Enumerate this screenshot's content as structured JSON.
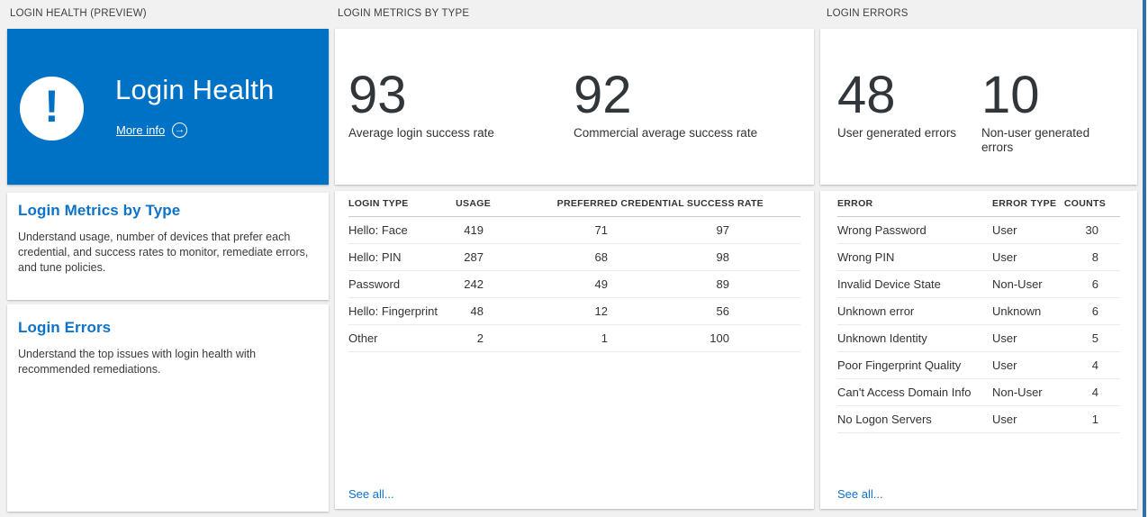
{
  "colors": {
    "tile_blue": "#0072c6",
    "link_blue": "#0d73ca",
    "text_dark": "#333333",
    "background": "#f1f1f1",
    "edge_blue": "#2a72ad"
  },
  "icons": {
    "alert_glyph": "!",
    "arrow_glyph": "→"
  },
  "login_health": {
    "header": "LOGIN HEALTH (PREVIEW)",
    "tile": {
      "title": "Login Health",
      "more_info_label": "More info"
    },
    "sections": [
      {
        "title": "Login Metrics by Type",
        "description": "Understand usage, number of devices that prefer each\ncredential, and success rates to monitor, remediate errors,\nand tune policies."
      },
      {
        "title": "Login Errors",
        "description": "Understand the top issues with login health with\nrecommended remediations."
      }
    ]
  },
  "login_metrics": {
    "header": "LOGIN METRICS BY TYPE",
    "stats": [
      {
        "value": "93",
        "label": "Average login success rate"
      },
      {
        "value": "92",
        "label": "Commercial average success rate"
      }
    ],
    "table": {
      "columns": [
        "LOGIN TYPE",
        "USAGE",
        "PREFERRED CREDENTIAL",
        "SUCCESS RATE"
      ],
      "rows": [
        [
          "Hello: Face",
          "419",
          "71",
          "97"
        ],
        [
          "Hello: PIN",
          "287",
          "68",
          "98"
        ],
        [
          "Password",
          "242",
          "49",
          "89"
        ],
        [
          "Hello: Fingerprint",
          "48",
          "12",
          "56"
        ],
        [
          "Other",
          "2",
          "1",
          "100"
        ]
      ]
    },
    "see_all_label": "See all..."
  },
  "login_errors": {
    "header": "LOGIN ERRORS",
    "stats": [
      {
        "value": "48",
        "label": "User generated errors"
      },
      {
        "value": "10",
        "label": "Non-user generated\nerrors"
      }
    ],
    "table": {
      "columns": [
        "ERROR",
        "ERROR TYPE",
        "COUNTS"
      ],
      "rows": [
        [
          "Wrong Password",
          "User",
          "30"
        ],
        [
          "Wrong PIN",
          "User",
          "8"
        ],
        [
          "Invalid Device State",
          "Non-User",
          "6"
        ],
        [
          "Unknown error",
          "Unknown",
          "6"
        ],
        [
          "Unknown Identity",
          "User",
          "5"
        ],
        [
          "Poor Fingerprint Quality",
          "User",
          "4"
        ],
        [
          "Can't Access Domain Info",
          "Non-User",
          "4"
        ],
        [
          "No Logon Servers",
          "User",
          "1"
        ]
      ]
    },
    "see_all_label": "See all..."
  }
}
